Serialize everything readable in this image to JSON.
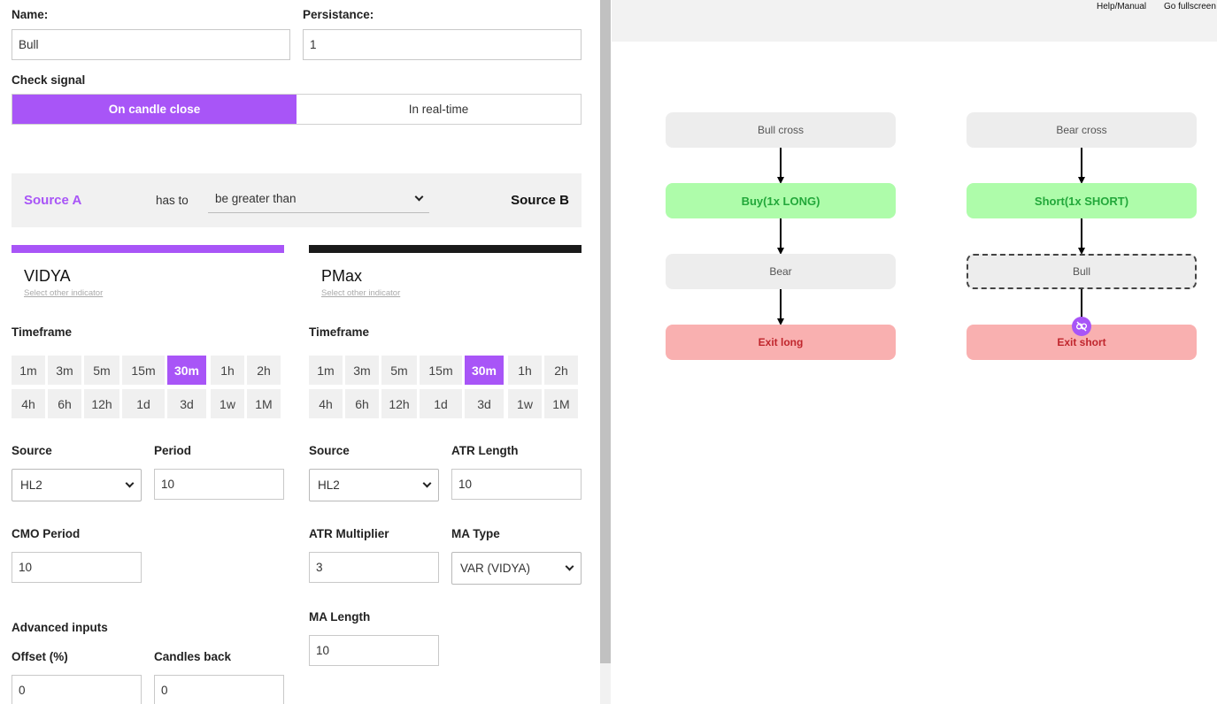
{
  "condition": {
    "name_label": "Name:",
    "name_value": "Bull",
    "persistance_label": "Persistance:",
    "persistance_value": "1",
    "check_signal_label": "Check signal",
    "check_signal_options": [
      "On candle close",
      "In real-time"
    ],
    "check_signal_selected": "On candle close",
    "source_a": "Source A",
    "has_to": "has to",
    "operator": "be greater than",
    "source_b": "Source B"
  },
  "indicator_a": {
    "name": "VIDYA",
    "select_other": "Select other indicator",
    "accent": "#a855f7",
    "timeframe_label": "Timeframe",
    "timeframes_row1": [
      "1m",
      "3m",
      "5m",
      "15m",
      "30m",
      "1h",
      "2h"
    ],
    "timeframes_row2": [
      "4h",
      "6h",
      "12h",
      "1d",
      "3d",
      "1w",
      "1M"
    ],
    "selected_timeframe": "30m",
    "source_label": "Source",
    "source_value": "HL2",
    "period_label": "Period",
    "period_value": "10",
    "cmo_label": "CMO Period",
    "cmo_value": "10",
    "advanced_label": "Advanced inputs",
    "offset_label": "Offset (%)",
    "offset_value": "0",
    "candles_back_label": "Candles back",
    "candles_back_value": "0"
  },
  "indicator_b": {
    "name": "PMax",
    "select_other": "Select other indicator",
    "accent": "#1a1a1a",
    "timeframe_label": "Timeframe",
    "timeframes_row1": [
      "1m",
      "3m",
      "5m",
      "15m",
      "30m",
      "1h",
      "2h"
    ],
    "timeframes_row2": [
      "4h",
      "6h",
      "12h",
      "1d",
      "3d",
      "1w",
      "1M"
    ],
    "selected_timeframe": "30m",
    "source_label": "Source",
    "source_value": "HL2",
    "atr_length_label": "ATR Length",
    "atr_length_value": "10",
    "atr_mult_label": "ATR Multiplier",
    "atr_mult_value": "3",
    "ma_type_label": "MA Type",
    "ma_type_value": "VAR (VIDYA)",
    "ma_length_label": "MA Length",
    "ma_length_value": "10"
  },
  "header": {
    "help": "Help/Manual",
    "fullscreen": "Go fullscreen"
  },
  "flow": {
    "long": [
      "Bull cross",
      "Buy(1x LONG)",
      "Bear",
      "Exit long"
    ],
    "short": [
      "Bear cross",
      "Short(1x SHORT)",
      "Bull",
      "Exit short"
    ],
    "colors": {
      "grey": "#ededed",
      "green": "#aefcaa",
      "red": "#f9b0b0"
    }
  }
}
